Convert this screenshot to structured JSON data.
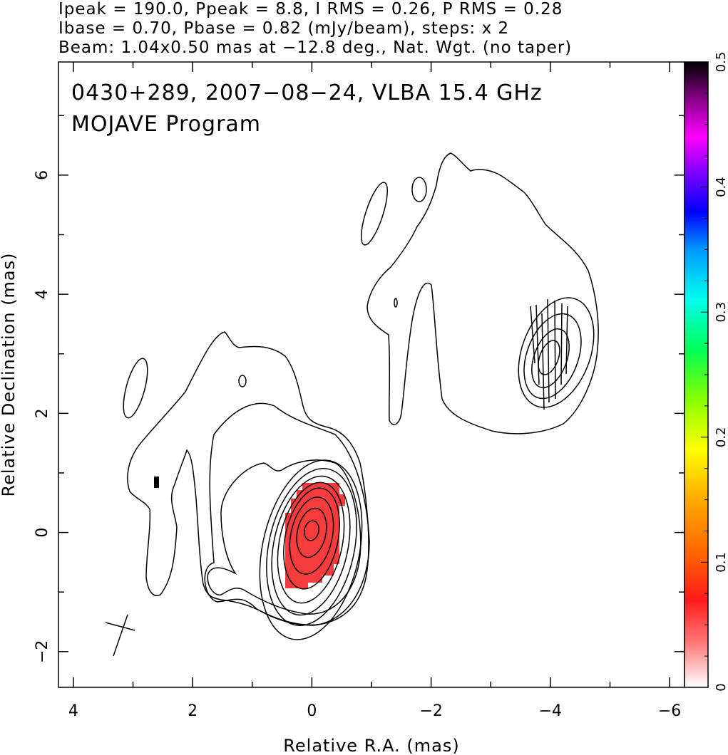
{
  "header": {
    "line1": "Ipeak = 190.0, Ppeak = 8.8, I RMS = 0.26, P RMS = 0.28",
    "line2": "Ibase = 0.70, Pbase = 0.82 (mJy/beam), steps: x 2",
    "line3": "Beam: 1.04x0.50 mas at −12.8 deg., Nat. Wgt. (no taper)"
  },
  "chart_data": {
    "type": "heatmap",
    "title": "0430+289, 2007−08−24, VLBA 15.4 GHz",
    "subtitle": "MOJAVE Program",
    "xlabel": "Relative R.A. (mas)",
    "ylabel": "Relative Declination (mas)",
    "xlim": [
      4.25,
      -6.25
    ],
    "ylim": [
      -2.6,
      7.9
    ],
    "x_ticks": [
      4,
      2,
      0,
      -2,
      -4,
      -6
    ],
    "x_tick_labels": [
      "4",
      "2",
      "0",
      "−2",
      "−4",
      "−6"
    ],
    "y_ticks": [
      -2,
      0,
      2,
      4,
      6
    ],
    "y_tick_labels": [
      "−2",
      "0",
      "2",
      "4",
      "6"
    ],
    "intensity_peak_mJy_per_beam": 190.0,
    "polarized_peak_mJy_per_beam": 8.8,
    "contour_base_mJy_per_beam": 0.7,
    "contour_step_factor": 2,
    "colorbar": {
      "range": [
        0,
        0.5
      ],
      "ticks": [
        0,
        0.1,
        0.2,
        0.3,
        0.4,
        0.5
      ],
      "tick_labels": [
        "0",
        "0.1",
        "0.2",
        "0.3",
        "0.4",
        "0.5"
      ]
    },
    "features": [
      {
        "name": "core",
        "ra": 0.0,
        "dec": 0.0,
        "contours": 8,
        "polarized_patch": true,
        "patch_color": "#f43c3c"
      },
      {
        "name": "jet component",
        "ra": -4.0,
        "dec": 3.0,
        "contours": 4,
        "pol_vectors": true
      }
    ],
    "beam": {
      "major_mas": 1.04,
      "minor_mas": 0.5,
      "pa_deg": -12.8
    }
  },
  "colors": {
    "background": "#ffffff",
    "contour": "#000000",
    "polarization_patch": "#f43c3c",
    "colormap": [
      "#ffffff",
      "#ff6b6b",
      "#ff0000",
      "#ff9900",
      "#ffff00",
      "#66ff00",
      "#00ff66",
      "#00ffff",
      "#0099ff",
      "#0000ff",
      "#9900ff",
      "#ff00ff",
      "#990099",
      "#000000"
    ]
  }
}
